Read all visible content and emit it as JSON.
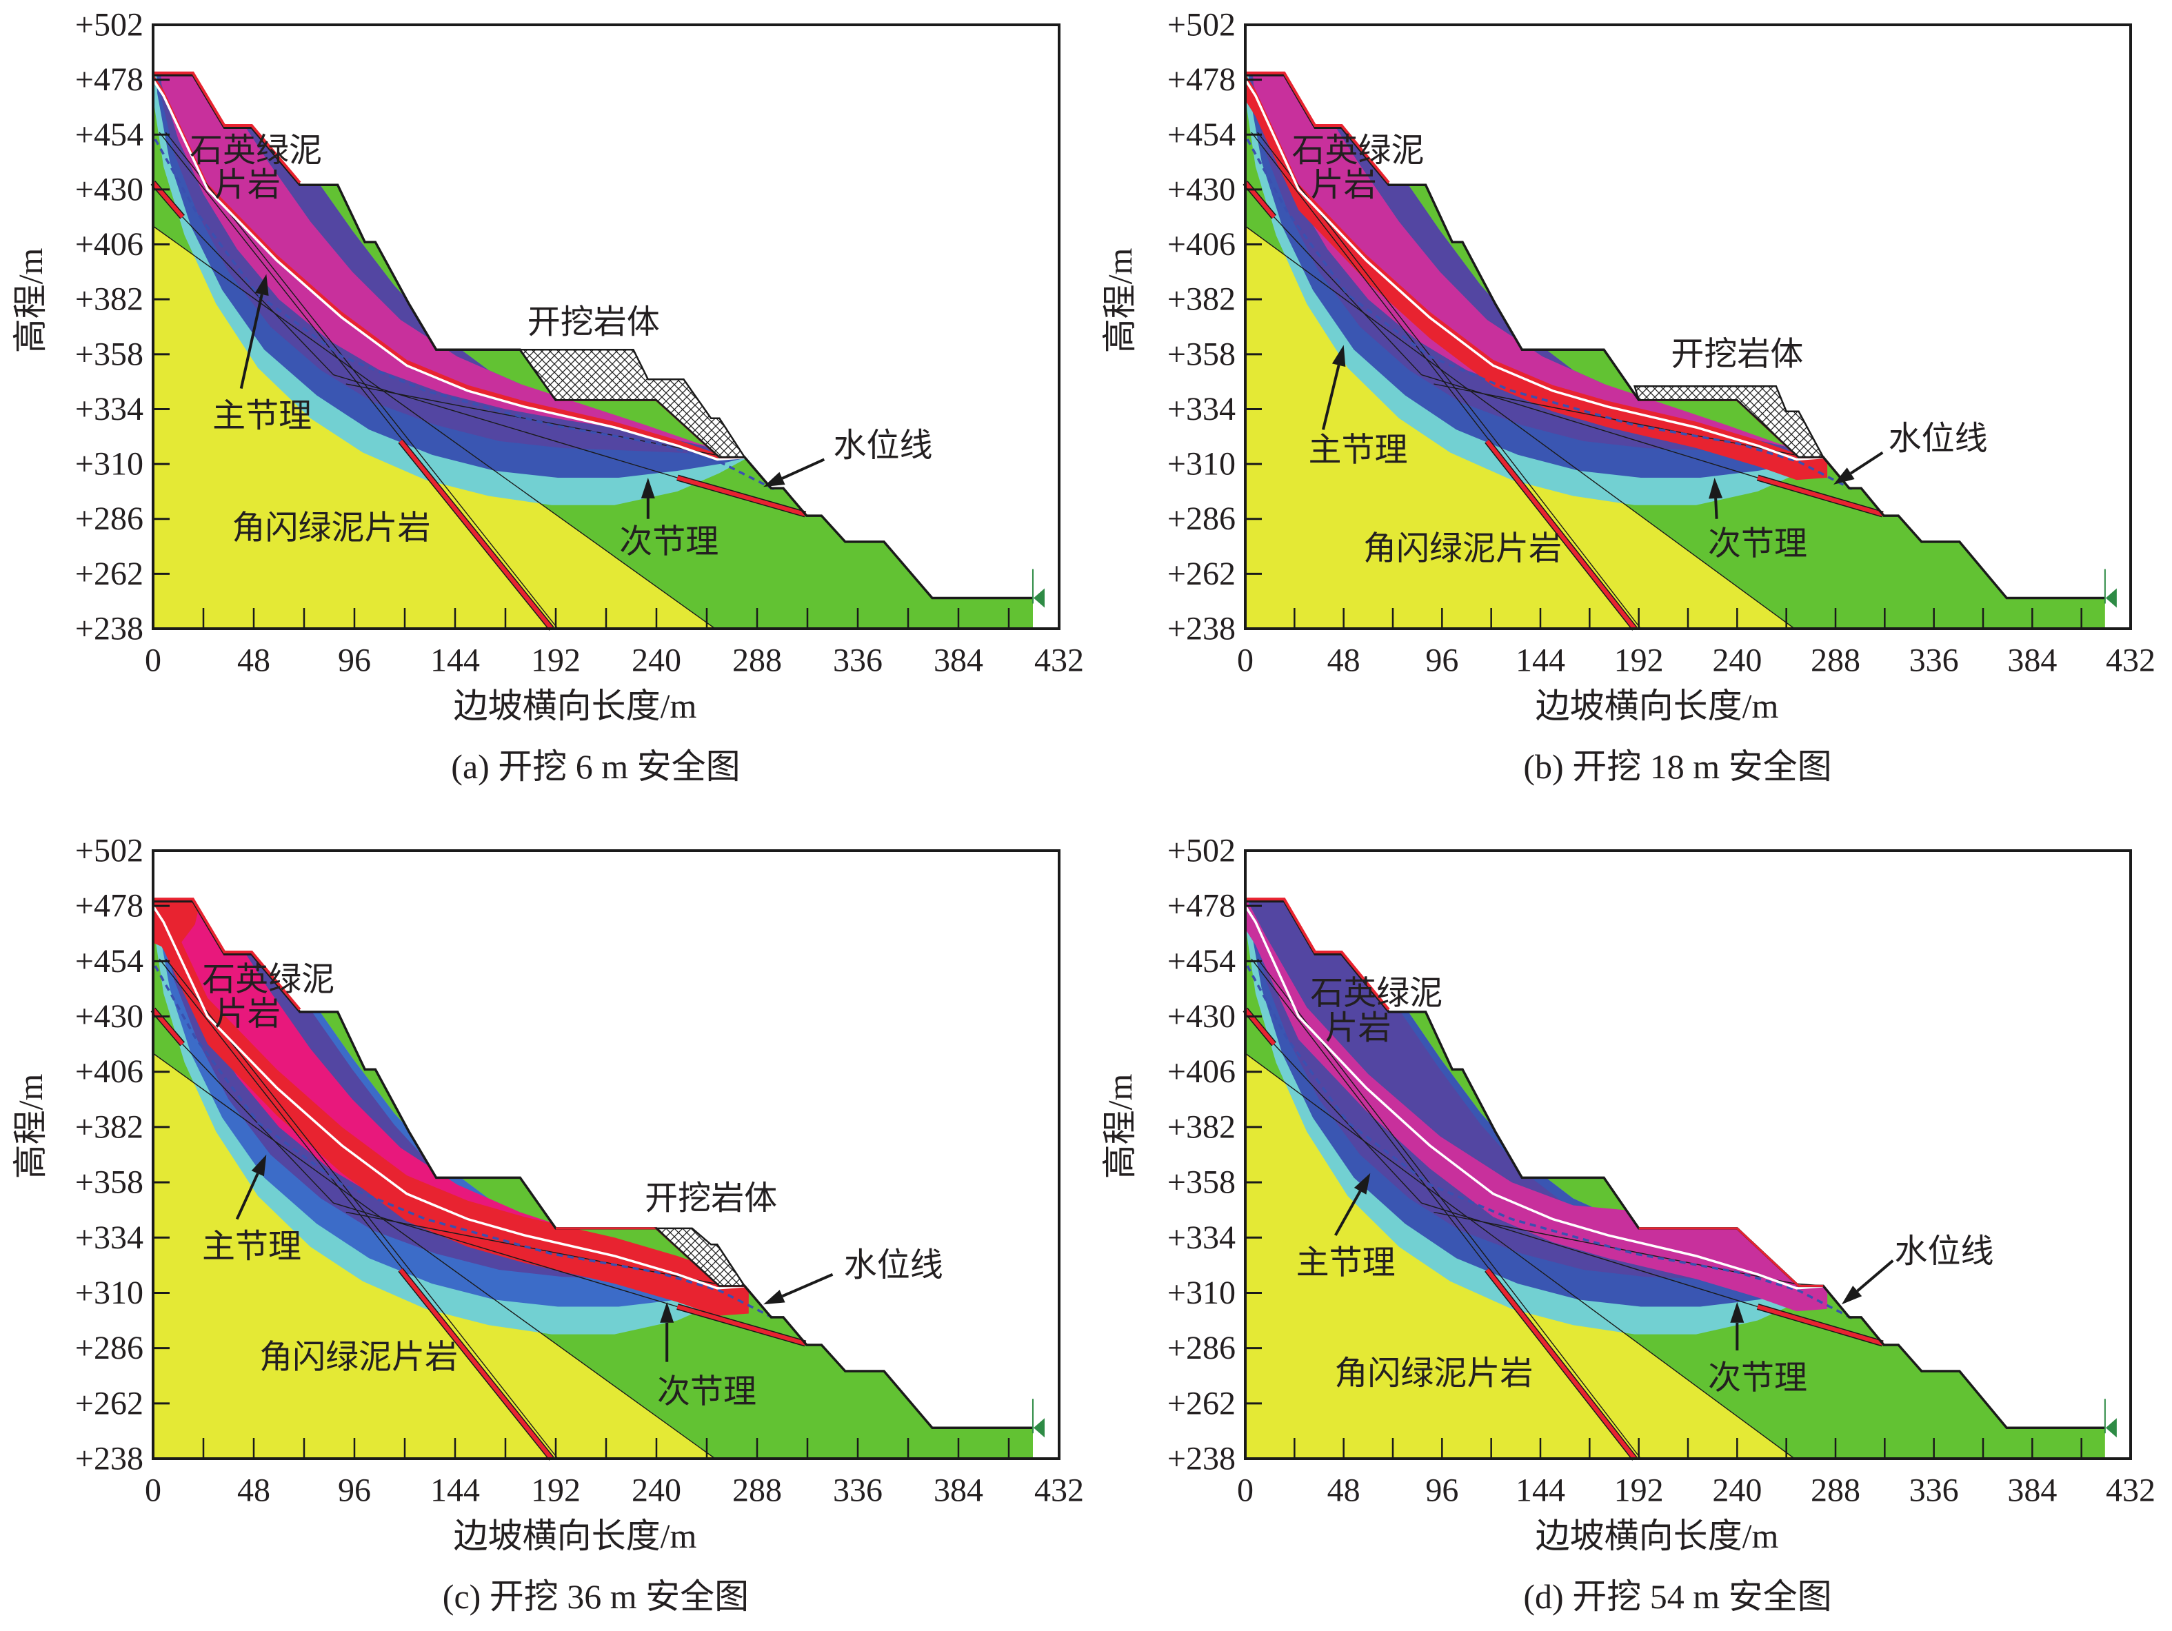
{
  "palette": {
    "yellow": "#E4E935",
    "green": "#62C233",
    "cyan": "#72D0D2",
    "blue": "#3A56B2",
    "blue_light": "#3C6CC8",
    "purple": "#5346A2",
    "magenta": "#C8309C",
    "hotpink": "#E8187C",
    "red": "#E82330",
    "white": "#FFFFFF",
    "water": "#3A50B0",
    "marker": "#2E8B45",
    "ink": "#1A1A1A"
  },
  "geometry": {
    "surface": [
      [
        0,
        480
      ],
      [
        19,
        480
      ],
      [
        34,
        457
      ],
      [
        47,
        457
      ],
      [
        70,
        432
      ],
      [
        88,
        432
      ],
      [
        101,
        407
      ],
      [
        106,
        407
      ],
      [
        122,
        380
      ],
      [
        135,
        360
      ],
      [
        175,
        360
      ],
      [
        192,
        338
      ],
      [
        240,
        338
      ],
      [
        270,
        313
      ],
      [
        282,
        313
      ],
      [
        294.7,
        299.4
      ],
      [
        300.5,
        299.4
      ],
      [
        311.6,
        287.4
      ],
      [
        318.7,
        287.4
      ],
      [
        330,
        276
      ],
      [
        348.5,
        276
      ],
      [
        371.5,
        251.4
      ],
      [
        419.5,
        251.4
      ]
    ],
    "green_region": [
      [
        0,
        414
      ],
      [
        0,
        530
      ],
      [
        432,
        530
      ],
      [
        432,
        238
      ],
      [
        268,
        238
      ]
    ],
    "rock_boundary": [
      [
        0,
        414
      ],
      [
        268,
        238
      ]
    ],
    "red_top_edge": [
      [
        0,
        481
      ],
      [
        19,
        481
      ],
      [
        34,
        458
      ],
      [
        47,
        458
      ],
      [
        70,
        433
      ]
    ],
    "red_floor": [
      [
        192,
        338
      ],
      [
        240,
        338
      ],
      [
        270,
        313
      ],
      [
        282,
        313
      ]
    ],
    "water_line": [
      [
        1,
        452
      ],
      [
        20,
        421
      ],
      [
        50,
        384
      ],
      [
        90,
        357
      ],
      [
        130,
        342
      ],
      [
        190,
        327
      ],
      [
        240,
        319
      ],
      [
        270,
        311
      ],
      [
        296,
        299
      ]
    ],
    "joint_lines": [
      [
        [
          3,
          455
        ],
        [
          190,
          238
        ]
      ],
      [
        [
          6,
          455
        ],
        [
          193,
          238
        ]
      ],
      [
        [
          14,
          418
        ],
        [
          86,
          349
        ]
      ],
      [
        [
          86,
          349
        ],
        [
          250,
          304
        ]
      ],
      [
        [
          92,
          345
        ],
        [
          268,
          314
        ],
        [
          284,
          313
        ]
      ]
    ],
    "red_bands": [
      [
        [
          118,
          320
        ],
        [
          190,
          238
        ]
      ],
      [
        [
          250,
          304
        ],
        [
          311,
          288
        ]
      ],
      [
        [
          0,
          433
        ],
        [
          14,
          418
        ]
      ]
    ],
    "curves": {
      "L1": [
        [
          0,
          470
        ],
        [
          5,
          440
        ],
        [
          15,
          410
        ],
        [
          30,
          380
        ],
        [
          50,
          352
        ],
        [
          75,
          330
        ],
        [
          100,
          315
        ],
        [
          130,
          303
        ],
        [
          160,
          296
        ],
        [
          190,
          292
        ],
        [
          220,
          292
        ],
        [
          250,
          298
        ],
        [
          270,
          306
        ],
        [
          284,
          313
        ]
      ],
      "L2": [
        [
          2,
          472
        ],
        [
          8,
          442
        ],
        [
          18,
          414
        ],
        [
          33,
          386
        ],
        [
          53,
          360
        ],
        [
          78,
          340
        ],
        [
          103,
          325
        ],
        [
          133,
          314
        ],
        [
          163,
          307
        ],
        [
          193,
          304
        ],
        [
          222,
          304
        ],
        [
          250,
          307
        ],
        [
          270,
          310
        ],
        [
          284,
          313
        ]
      ],
      "L3": [
        [
          3,
          474
        ],
        [
          10,
          446
        ],
        [
          21,
          420
        ],
        [
          36,
          394
        ],
        [
          56,
          370
        ],
        [
          80,
          351
        ],
        [
          105,
          337
        ],
        [
          135,
          327
        ],
        [
          165,
          320
        ],
        [
          195,
          317
        ],
        [
          224,
          316
        ],
        [
          250,
          315
        ],
        [
          270,
          314
        ],
        [
          284,
          313
        ]
      ],
      "L4": [
        [
          4,
          476
        ],
        [
          12,
          452
        ],
        [
          24,
          428
        ],
        [
          40,
          404
        ],
        [
          60,
          382
        ],
        [
          84,
          364
        ],
        [
          108,
          351
        ],
        [
          138,
          341
        ],
        [
          168,
          334
        ],
        [
          198,
          329
        ],
        [
          226,
          325
        ],
        [
          252,
          320
        ],
        [
          272,
          316
        ],
        [
          284,
          313
        ]
      ],
      "U0": [
        [
          30,
          505
        ],
        [
          55,
          468
        ],
        [
          75,
          438
        ],
        [
          95,
          412
        ],
        [
          115,
          388
        ],
        [
          135,
          368
        ],
        [
          160,
          351
        ],
        [
          190,
          339
        ],
        [
          220,
          330
        ],
        [
          250,
          321
        ],
        [
          270,
          316
        ],
        [
          284,
          313
        ]
      ],
      "U1": [
        [
          12,
          505
        ],
        [
          35,
          470
        ],
        [
          55,
          442
        ],
        [
          75,
          416
        ],
        [
          95,
          394
        ],
        [
          118,
          373
        ],
        [
          145,
          357
        ],
        [
          175,
          345
        ],
        [
          205,
          336
        ],
        [
          235,
          327
        ],
        [
          260,
          319
        ],
        [
          284,
          313
        ]
      ],
      "U1d": [
        [
          0,
          482
        ],
        [
          10,
          465
        ],
        [
          30,
          434
        ],
        [
          60,
          405
        ],
        [
          95,
          378
        ],
        [
          130,
          358
        ],
        [
          160,
          348
        ],
        [
          185,
          346
        ],
        [
          284,
          346
        ]
      ],
      "W": [
        [
          0,
          478
        ],
        [
          5,
          471
        ],
        [
          26,
          430
        ],
        [
          59,
          399
        ],
        [
          90,
          374
        ],
        [
          121,
          353
        ],
        [
          150,
          342
        ],
        [
          177,
          335
        ],
        [
          220,
          326
        ],
        [
          250,
          318
        ],
        [
          269,
          312
        ],
        [
          284,
          313
        ]
      ]
    }
  },
  "chart_data": [
    {
      "id": "a",
      "type": "area",
      "caption": "(a) 开挖 6 m 安全图",
      "excavation_depth_m": 6,
      "xlabel": "边坡横向长度/m",
      "ylabel": "高程/m",
      "xlim": [
        0,
        432
      ],
      "ylim": [
        238,
        502
      ],
      "xticks": [
        0,
        48,
        96,
        144,
        192,
        240,
        288,
        336,
        384,
        432
      ],
      "xticklabels": [
        "0",
        "48",
        "96",
        "144",
        "192",
        "240",
        "288",
        "336",
        "384",
        "432"
      ],
      "yticks": [
        502,
        478,
        454,
        430,
        406,
        382,
        358,
        334,
        310,
        286,
        262,
        238
      ],
      "yticklabels": [
        "+502",
        "+478",
        "+454",
        "+430",
        "+406",
        "+382",
        "+358",
        "+334",
        "+310",
        "+286",
        "+262",
        "+238"
      ],
      "labels": {
        "upper_rock_line1": "石英绿泥",
        "upper_rock_line2": "片岩",
        "excavated_rock": "开挖岩体",
        "main_joint": "主节理",
        "lower_rock": "角闪绿泥片岩",
        "water_line": "水位线",
        "secondary_joint": "次节理"
      },
      "base_color": "yellow",
      "zones": [
        {
          "name": "cyan-zone",
          "color": "cyan",
          "lower": "L1",
          "upper": "U0"
        },
        {
          "name": "blue-zone",
          "color": "blue",
          "lower": "L2",
          "upper": "U0"
        },
        {
          "name": "purple-zone",
          "color": "purple",
          "lower": "L3",
          "upper": "U0"
        },
        {
          "name": "magenta-zone",
          "color": "magenta",
          "lower": "L4",
          "upper": "U1"
        },
        {
          "name": "red-zone",
          "color": "red",
          "lower": "W",
          "upper": "W",
          "upper_offset": 2.5
        }
      ],
      "hatch": [
        [
          175,
          360
        ],
        [
          229,
          360
        ],
        [
          236,
          347
        ],
        [
          253,
          347
        ],
        [
          266,
          330
        ],
        [
          270,
          330
        ],
        [
          282,
          313
        ],
        [
          270,
          313
        ],
        [
          240,
          338
        ],
        [
          192,
          338
        ]
      ]
    },
    {
      "id": "b",
      "type": "area",
      "caption": "(b) 开挖 18 m 安全图",
      "excavation_depth_m": 18,
      "xlabel": "边坡横向长度/m",
      "ylabel": "高程/m",
      "xlim": [
        0,
        432
      ],
      "ylim": [
        238,
        502
      ],
      "xticks": [
        0,
        48,
        96,
        144,
        192,
        240,
        288,
        336,
        384,
        432
      ],
      "xticklabels": [
        "0",
        "48",
        "96",
        "144",
        "192",
        "240",
        "288",
        "336",
        "384",
        "432"
      ],
      "yticks": [
        502,
        478,
        454,
        430,
        406,
        382,
        358,
        334,
        310,
        286,
        262,
        238
      ],
      "yticklabels": [
        "+502",
        "+478",
        "+454",
        "+430",
        "+406",
        "+382",
        "+358",
        "+334",
        "+310",
        "+286",
        "+262",
        "+238"
      ],
      "labels": {
        "upper_rock_line1": "石英绿泥",
        "upper_rock_line2": "片岩",
        "excavated_rock": "开挖岩体",
        "main_joint": "主节理",
        "lower_rock": "角闪绿泥片岩",
        "water_line": "水位线",
        "secondary_joint": "次节理"
      },
      "base_color": "yellow",
      "zones": [
        {
          "name": "cyan-zone",
          "color": "cyan",
          "lower": "L1",
          "upper": "U0"
        },
        {
          "name": "blue-zone",
          "color": "blue",
          "lower": "L2",
          "upper": "U0"
        },
        {
          "name": "purple-zone",
          "color": "purple",
          "lower": "L3",
          "upper": "U0"
        },
        {
          "name": "magenta-zone",
          "color": "magenta",
          "lower": "L4",
          "upper": "U1"
        },
        {
          "name": "red-zone",
          "color": "red",
          "lower": "W",
          "lower_offset": -9,
          "upper": "W",
          "upper_offset": 2.5
        }
      ],
      "hatch": [
        [
          190,
          344
        ],
        [
          259,
          344
        ],
        [
          264,
          333
        ],
        [
          270,
          333
        ],
        [
          282,
          313
        ],
        [
          270,
          313
        ],
        [
          240,
          338
        ],
        [
          192,
          338
        ]
      ]
    },
    {
      "id": "c",
      "type": "area",
      "caption": "(c) 开挖 36 m 安全图",
      "excavation_depth_m": 36,
      "xlabel": "边坡横向长度/m",
      "ylabel": "高程/m",
      "xlim": [
        0,
        432
      ],
      "ylim": [
        238,
        502
      ],
      "xticks": [
        0,
        48,
        96,
        144,
        192,
        240,
        288,
        336,
        384,
        432
      ],
      "xticklabels": [
        "0",
        "48",
        "96",
        "144",
        "192",
        "240",
        "288",
        "336",
        "384",
        "432"
      ],
      "yticks": [
        502,
        478,
        454,
        430,
        406,
        382,
        358,
        334,
        310,
        286,
        262,
        238
      ],
      "yticklabels": [
        "+502",
        "+478",
        "+454",
        "+430",
        "+406",
        "+382",
        "+358",
        "+334",
        "+310",
        "+286",
        "+262",
        "+238"
      ],
      "labels": {
        "upper_rock_line1": "石英绿泥",
        "upper_rock_line2": "片岩",
        "excavated_rock": "开挖岩体",
        "main_joint": "主节理",
        "lower_rock": "角闪绿泥片岩",
        "water_line": "水位线",
        "secondary_joint": "次节理"
      },
      "base_color": "yellow",
      "zones": [
        {
          "name": "cyan-zone",
          "color": "cyan",
          "lower": "L1",
          "upper": "U0"
        },
        {
          "name": "blue-zone",
          "color": "blue_light",
          "lower": "L2",
          "upper": "U0"
        },
        {
          "name": "purple-zone",
          "color": "purple",
          "lower": "L3",
          "upper": "U0",
          "upper_offset": -5
        },
        {
          "name": "pink-zone",
          "color": "hotpink",
          "lower": "L4",
          "upper": "U1"
        },
        {
          "name": "red-zone",
          "color": "red",
          "lower": "W",
          "lower_offset": -12,
          "upper": "W",
          "upper_offset": 8
        },
        {
          "name": "red-cap-zone",
          "color": "red",
          "polygon": [
            [
              0,
              486
            ],
            [
              24,
              486
            ],
            [
              20,
              470
            ],
            [
              10,
              458
            ],
            [
              0,
              462
            ]
          ]
        }
      ],
      "hatch": [
        [
          240,
          338
        ],
        [
          257,
          338
        ],
        [
          266,
          331
        ],
        [
          269,
          331
        ],
        [
          282,
          313
        ],
        [
          270,
          313
        ]
      ]
    },
    {
      "id": "d",
      "type": "area",
      "caption": "(d) 开挖 54 m 安全图",
      "excavation_depth_m": 54,
      "xlabel": "边坡横向长度/m",
      "ylabel": "高程/m",
      "xlim": [
        0,
        432
      ],
      "ylim": [
        238,
        502
      ],
      "xticks": [
        0,
        48,
        96,
        144,
        192,
        240,
        288,
        336,
        384,
        432
      ],
      "xticklabels": [
        "0",
        "48",
        "96",
        "144",
        "192",
        "240",
        "288",
        "336",
        "384",
        "432"
      ],
      "yticks": [
        502,
        478,
        454,
        430,
        406,
        382,
        358,
        334,
        310,
        286,
        262,
        238
      ],
      "yticklabels": [
        "+502",
        "+478",
        "+454",
        "+430",
        "+406",
        "+382",
        "+358",
        "+334",
        "+310",
        "+286",
        "+262",
        "+238"
      ],
      "labels": {
        "upper_rock_line1": "石英绿泥",
        "upper_rock_line2": "片岩",
        "main_joint": "主节理",
        "lower_rock": "角闪绿泥片岩",
        "water_line": "水位线",
        "secondary_joint": "次节理"
      },
      "base_color": "yellow",
      "zones": [
        {
          "name": "cyan-zone",
          "color": "cyan",
          "lower": "L1",
          "upper": "U0"
        },
        {
          "name": "blue-zone",
          "color": "blue",
          "lower": "L2",
          "upper": "U0"
        },
        {
          "name": "purple-zone",
          "color": "purple",
          "lower": "L3",
          "upper": "U0",
          "upper_offset": -5
        },
        {
          "name": "magenta-zone",
          "color": "magenta",
          "lower": "W",
          "lower_offset": -10,
          "upper": "U1d"
        }
      ],
      "hatch": null
    }
  ]
}
